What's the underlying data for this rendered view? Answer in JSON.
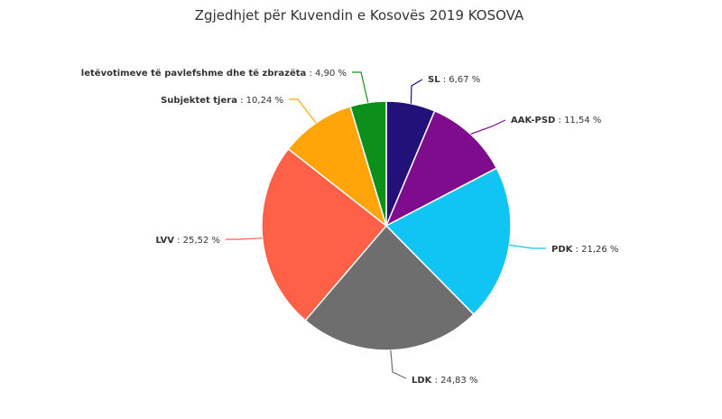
{
  "chart_data": {
    "type": "pie",
    "title": "Zgjedhjet për Kuvendin e Kosovës 2019 KOSOVA",
    "slices": [
      {
        "name": "SL",
        "value": 6.67,
        "label": "SL : 6,67 %",
        "color": "#23117a"
      },
      {
        "name": "AAK-PSD",
        "value": 11.54,
        "label": "AAK-PSD : 11,54 %",
        "color": "#7e0c8c"
      },
      {
        "name": "PDK",
        "value": 21.26,
        "label": "PDK : 21,26 %",
        "color": "#10c4f3"
      },
      {
        "name": "LDK",
        "value": 24.83,
        "label": "LDK : 24,83 %",
        "color": "#6e6e6e"
      },
      {
        "name": "LVV",
        "value": 25.52,
        "label": "LVV : 25,52 %",
        "color": "#ff6047"
      },
      {
        "name": "Subjektet tjera",
        "value": 10.24,
        "label": "Subjektet tjera : 10,24 %",
        "color": "#ffa50a"
      },
      {
        "name": "letëvotimeve të pavlefshme dhe të zbrazëta",
        "value": 4.9,
        "label": "letëvotimeve të pavlefshme dhe të zbrazëta : 4,90 %",
        "color": "#0d8f1c"
      }
    ],
    "start_angle_deg": 0,
    "direction": "clockwise"
  }
}
